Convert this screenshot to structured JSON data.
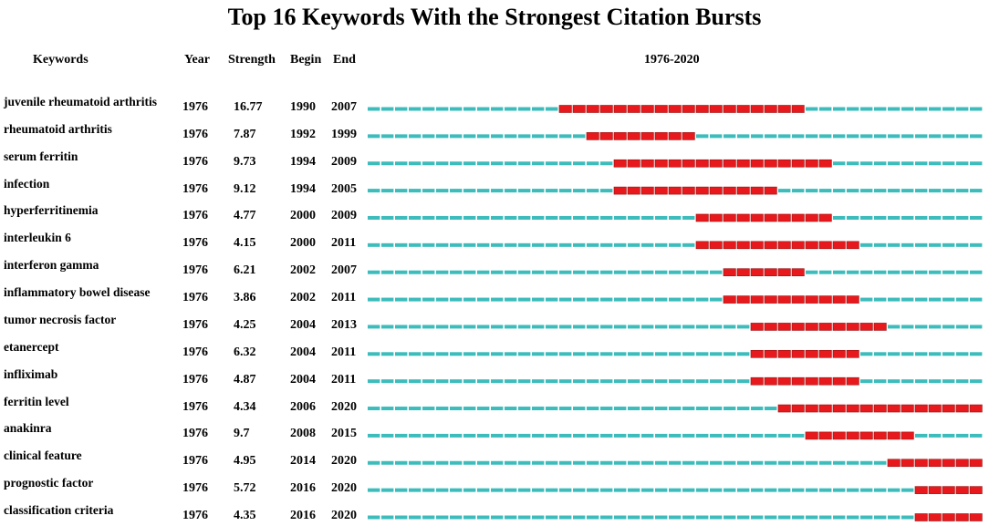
{
  "title": "Top 16 Keywords With the Strongest Citation Bursts",
  "headers": {
    "keywords": "Keywords",
    "year": "Year",
    "strength": "Strength",
    "begin": "Begin",
    "end": "End",
    "range": "1976-2020"
  },
  "colors": {
    "baseline": "#3dbcbc",
    "burst": "#e8191c",
    "burst_edge": "#9a0f10"
  },
  "chart_data": {
    "type": "table",
    "timeline": {
      "start": 1976,
      "end": 2020
    },
    "rows": [
      {
        "keyword": "juvenile rheumatoid arthritis",
        "year": "1976",
        "strength": "16.77",
        "begin": "1990",
        "end": "2007"
      },
      {
        "keyword": "rheumatoid arthritis",
        "year": "1976",
        "strength": "7.87",
        "begin": "1992",
        "end": "1999"
      },
      {
        "keyword": "serum ferritin",
        "year": "1976",
        "strength": "9.73",
        "begin": "1994",
        "end": "2009"
      },
      {
        "keyword": "infection",
        "year": "1976",
        "strength": "9.12",
        "begin": "1994",
        "end": "2005"
      },
      {
        "keyword": "hyperferritinemia",
        "year": "1976",
        "strength": "4.77",
        "begin": "2000",
        "end": "2009"
      },
      {
        "keyword": "interleukin 6",
        "year": "1976",
        "strength": "4.15",
        "begin": "2000",
        "end": "2011"
      },
      {
        "keyword": "interferon gamma",
        "year": "1976",
        "strength": "6.21",
        "begin": "2002",
        "end": "2007"
      },
      {
        "keyword": "inflammatory bowel disease",
        "year": "1976",
        "strength": "3.86",
        "begin": "2002",
        "end": "2011"
      },
      {
        "keyword": "tumor necrosis factor",
        "year": "1976",
        "strength": "4.25",
        "begin": "2004",
        "end": "2013"
      },
      {
        "keyword": "etanercept",
        "year": "1976",
        "strength": "6.32",
        "begin": "2004",
        "end": "2011"
      },
      {
        "keyword": "infliximab",
        "year": "1976",
        "strength": "4.87",
        "begin": "2004",
        "end": "2011"
      },
      {
        "keyword": "ferritin level",
        "year": "1976",
        "strength": "4.34",
        "begin": "2006",
        "end": "2020"
      },
      {
        "keyword": "anakinra",
        "year": "1976",
        "strength": "9.7",
        "begin": "2008",
        "end": "2015"
      },
      {
        "keyword": "clinical feature",
        "year": "1976",
        "strength": "4.95",
        "begin": "2014",
        "end": "2020"
      },
      {
        "keyword": "prognostic factor",
        "year": "1976",
        "strength": "5.72",
        "begin": "2016",
        "end": "2020"
      },
      {
        "keyword": "classification criteria",
        "year": "1976",
        "strength": "4.35",
        "begin": "2016",
        "end": "2020"
      }
    ]
  }
}
